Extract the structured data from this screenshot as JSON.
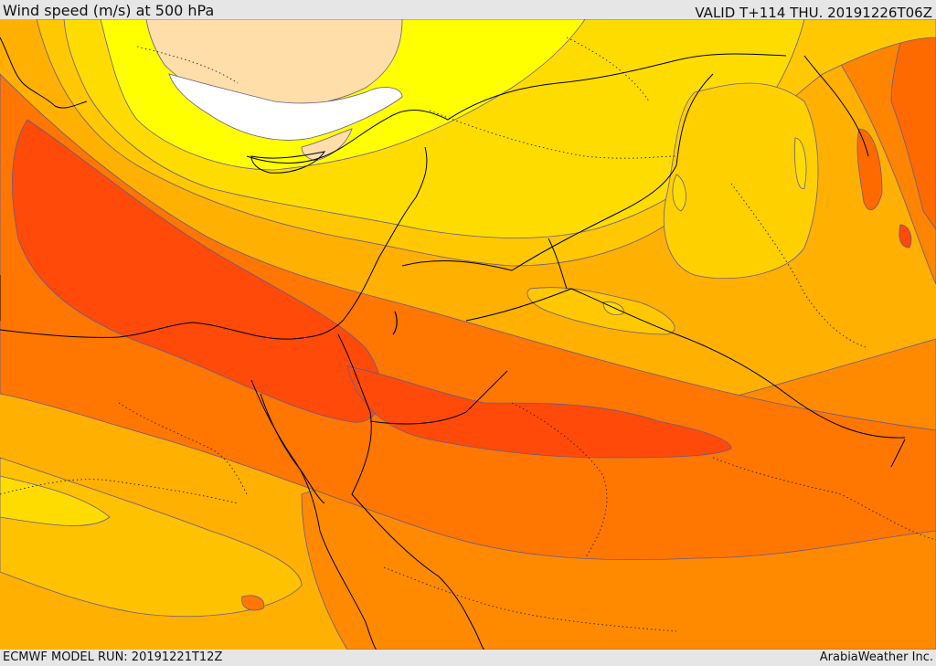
{
  "header": {
    "title": "Wind speed (m/s) at 500 hPa",
    "valid_time": "VALID T+114 THU. 20191226T06Z"
  },
  "footer": {
    "model_run": "ECMWF MODEL RUN: 20191221T12Z",
    "credit": "ArabiaWeather Inc."
  },
  "map": {
    "variable": "wind speed at 500 hPa",
    "units": "m/s",
    "color_bands_low_to_high": [
      "#ffffff",
      "#ffdeaa",
      "#ffff00",
      "#ffdc00",
      "#ffc800",
      "#ffaa00",
      "#ff8c00",
      "#ff6a00",
      "#ff4a0a"
    ],
    "coastline_color": "#000000",
    "border_style": "dotted",
    "contour_line_color": "#6a5a8a"
  }
}
